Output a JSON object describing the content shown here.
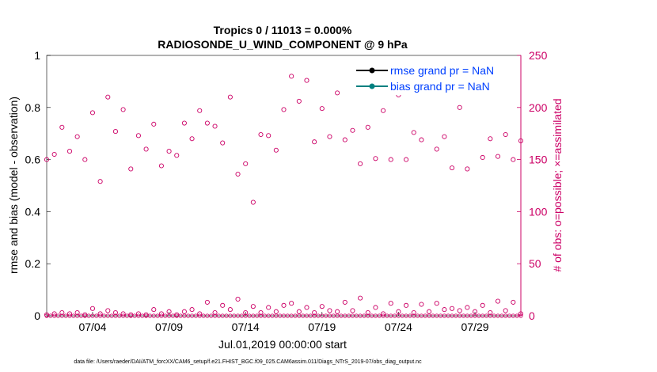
{
  "chart_data": {
    "type": "scatter",
    "title_line1": "Tropics 0 / 11013 = 0.000%",
    "title_line2": "RADIOSONDE_U_WIND_COMPONENT @ 9 hPa",
    "xlabel": "Jul.01,2019 00:00:00 start",
    "ylabel_left": "rmse and bias (model - observation)",
    "ylabel_right": "# of obs: o=possible; ×=assimilated",
    "ylim_left": [
      0,
      1
    ],
    "ylim_right": [
      0,
      250
    ],
    "xlim_days": [
      1.0,
      32.0
    ],
    "left_ticks": [
      "0",
      "0.2",
      "0.4",
      "0.6",
      "0.8",
      "1"
    ],
    "left_tick_values": [
      0,
      0.2,
      0.4,
      0.6,
      0.8,
      1
    ],
    "right_ticks": [
      "0",
      "50",
      "100",
      "150",
      "200",
      "250"
    ],
    "right_tick_values": [
      0,
      50,
      100,
      150,
      200,
      250
    ],
    "x_ticks": [
      "07/04",
      "07/09",
      "07/14",
      "07/19",
      "07/24",
      "07/29"
    ],
    "x_tick_values": [
      4,
      9,
      14,
      19,
      24,
      29
    ],
    "legend": [
      {
        "label": "rmse grand pr = NaN",
        "color": "#000000"
      },
      {
        "label": "bias grand pr = NaN",
        "color": "#008080"
      }
    ],
    "colors": {
      "left_axis": "#000000",
      "right_axis": "#cc0066",
      "possible": "#cc0066",
      "legend_text": "#0040ff"
    },
    "series": [
      {
        "name": "possible obs (upper)",
        "x": [
          1.0,
          1.5,
          2.0,
          2.5,
          3.0,
          3.5,
          4.0,
          4.5,
          5.0,
          5.5,
          6.0,
          6.5,
          7.0,
          7.5,
          8.0,
          8.5,
          9.0,
          9.5,
          10.0,
          10.5,
          11.0,
          11.5,
          12.0,
          12.5,
          13.0,
          13.5,
          14.0,
          14.5,
          15.0,
          15.5,
          16.0,
          16.5,
          17.0,
          17.5,
          18.0,
          18.5,
          19.0,
          19.5,
          20.0,
          20.5,
          21.0,
          21.5,
          22.0,
          22.5,
          23.0,
          23.5,
          24.0,
          24.5,
          25.0,
          25.5,
          26.0,
          26.5,
          27.0,
          27.5,
          28.0,
          28.5,
          29.0,
          29.5,
          30.0,
          30.5,
          31.0,
          31.5,
          32.0
        ],
        "values": [
          150,
          155,
          181,
          158,
          172,
          150,
          195,
          129,
          210,
          177,
          198,
          141,
          173,
          160,
          184,
          144,
          158,
          154,
          185,
          170,
          197,
          185,
          182,
          166,
          210,
          136,
          146,
          109,
          174,
          173,
          159,
          198,
          230,
          206,
          226,
          167,
          199,
          172,
          214,
          169,
          178,
          146,
          181,
          151,
          197,
          150,
          212,
          150,
          176,
          169,
          220,
          160,
          172,
          142,
          200,
          141,
          220,
          152,
          170,
          153,
          174,
          150,
          168
        ]
      },
      {
        "name": "possible obs (lower)",
        "x": [
          1.0,
          1.5,
          2.0,
          2.5,
          3.0,
          3.5,
          4.0,
          4.5,
          5.0,
          5.5,
          6.0,
          6.5,
          7.0,
          7.5,
          8.0,
          8.5,
          9.0,
          9.5,
          10.0,
          10.5,
          11.0,
          11.5,
          12.0,
          12.5,
          13.0,
          13.5,
          14.0,
          14.5,
          15.0,
          15.5,
          16.0,
          16.5,
          17.0,
          17.5,
          18.0,
          18.5,
          19.0,
          19.5,
          20.0,
          20.5,
          21.0,
          21.5,
          22.0,
          22.5,
          23.0,
          23.5,
          24.0,
          24.5,
          25.0,
          25.5,
          26.0,
          26.5,
          27.0,
          27.5,
          28.0,
          28.5,
          29.0,
          29.5,
          30.0,
          30.5,
          31.0,
          31.5,
          32.0
        ],
        "values": [
          1,
          2,
          3,
          2,
          3,
          1,
          7,
          2,
          5,
          3,
          2,
          1,
          2,
          1,
          6,
          2,
          4,
          1,
          4,
          6,
          2,
          13,
          3,
          10,
          6,
          16,
          3,
          9,
          3,
          8,
          4,
          10,
          12,
          4,
          8,
          3,
          9,
          5,
          4,
          13,
          5,
          17,
          3,
          8,
          2,
          12,
          4,
          10,
          3,
          11,
          4,
          12,
          6,
          7,
          5,
          8,
          4,
          10,
          3,
          14,
          5,
          13,
          2
        ]
      }
    ]
  },
  "footer": "data file: /Users/raeder/DAI/ATM_forcXX/CAM6_setup/f.e21.FHIST_BGC.f09_025.CAM6assim.011/Diags_NTrS_2019-07/obs_diag_output.nc"
}
